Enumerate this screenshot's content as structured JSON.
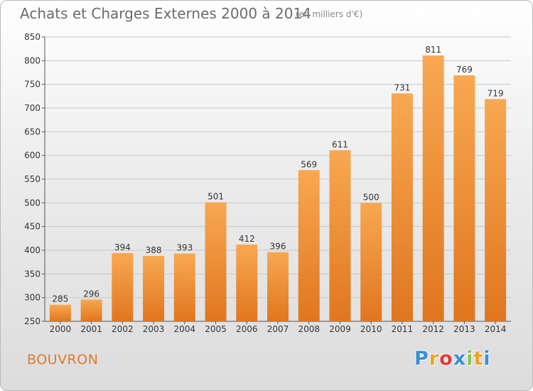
{
  "title": "Achats et Charges Externes 2000 à 2014",
  "unit": "(en milliers d'€)",
  "commune": "BOUVRON",
  "logo": {
    "text": "Proxiti",
    "colors": [
      "#3a8fd6",
      "#f0a21e",
      "#e53935",
      "#3a8fd6",
      "#8bc34a",
      "#f0a21e",
      "#3a8fd6"
    ]
  },
  "colors": {
    "bar_top": "#f8a851",
    "bar_bottom": "#e0761f",
    "grid": "#c8c8c8"
  },
  "chart_data": {
    "type": "bar",
    "categories": [
      "2000",
      "2001",
      "2002",
      "2003",
      "2004",
      "2005",
      "2006",
      "2007",
      "2008",
      "2009",
      "2010",
      "2011",
      "2012",
      "2013",
      "2014"
    ],
    "values": [
      285,
      296,
      394,
      388,
      393,
      501,
      412,
      396,
      569,
      611,
      500,
      731,
      811,
      769,
      719
    ],
    "ylim": [
      250,
      850
    ],
    "yticks": [
      250,
      300,
      350,
      400,
      450,
      500,
      550,
      600,
      650,
      700,
      750,
      800,
      850
    ],
    "grid": true,
    "title": "Achats et Charges Externes 2000 à 2014",
    "xlabel": "",
    "ylabel": ""
  }
}
